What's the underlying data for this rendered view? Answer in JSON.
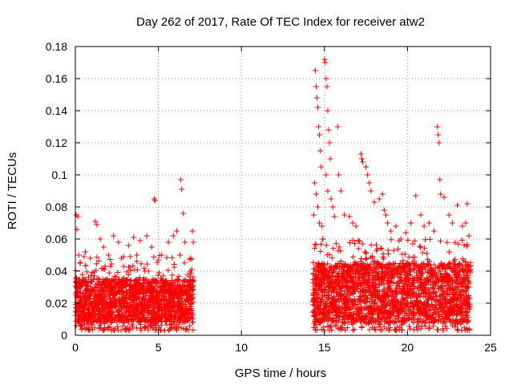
{
  "chart_data": {
    "type": "scatter",
    "title": "Day 262 of 2017, Rate Of TEC Index for receiver atw2",
    "xlabel": "GPS time / hours",
    "ylabel": "ROTI / TECUs",
    "xlim": [
      0,
      25
    ],
    "ylim": [
      0,
      0.18
    ],
    "x_ticks": [
      0,
      5,
      10,
      15,
      20,
      25
    ],
    "y_ticks": [
      0,
      0.02,
      0.04,
      0.06,
      0.08,
      0.1,
      0.12,
      0.14,
      0.16,
      0.18
    ],
    "x_tick_labels": [
      "0",
      "5",
      "10",
      "15",
      "20",
      "25"
    ],
    "y_tick_labels": [
      "0",
      "0.02",
      "0.04",
      "0.06",
      "0.08",
      "0.1",
      "0.12",
      "0.14",
      "0.16",
      "0.18"
    ],
    "grid": true,
    "marker": "plus",
    "color": "#ff0000",
    "series": [
      {
        "points": [
          [
            0.05,
            0.075
          ],
          [
            0.1,
            0.066
          ],
          [
            0.15,
            0.074
          ],
          [
            0.2,
            0.05
          ],
          [
            0.3,
            0.045
          ],
          [
            0.6,
            0.052
          ],
          [
            0.9,
            0.048
          ],
          [
            1.2,
            0.071
          ],
          [
            1.3,
            0.069
          ],
          [
            1.5,
            0.06
          ],
          [
            1.7,
            0.055
          ],
          [
            2.0,
            0.05
          ],
          [
            2.3,
            0.062
          ],
          [
            2.6,
            0.058
          ],
          [
            2.9,
            0.049
          ],
          [
            3.2,
            0.056
          ],
          [
            3.5,
            0.061
          ],
          [
            3.7,
            0.05
          ],
          [
            3.9,
            0.059
          ],
          [
            4.3,
            0.062
          ],
          [
            4.6,
            0.055
          ],
          [
            4.75,
            0.085
          ],
          [
            4.8,
            0.084
          ],
          [
            5.2,
            0.05
          ],
          [
            5.6,
            0.058
          ],
          [
            5.9,
            0.062
          ],
          [
            6.1,
            0.065
          ],
          [
            6.3,
            0.05
          ],
          [
            6.35,
            0.097
          ],
          [
            6.4,
            0.091
          ],
          [
            6.5,
            0.076
          ],
          [
            6.6,
            0.058
          ],
          [
            6.9,
            0.048
          ],
          [
            7.05,
            0.065
          ],
          [
            7.1,
            0.058
          ],
          [
            14.45,
            0.165
          ],
          [
            14.5,
            0.155
          ],
          [
            14.55,
            0.148
          ],
          [
            14.6,
            0.142
          ],
          [
            14.65,
            0.13
          ],
          [
            14.7,
            0.125
          ],
          [
            14.75,
            0.115
          ],
          [
            14.8,
            0.105
          ],
          [
            14.4,
            0.095
          ],
          [
            14.5,
            0.088
          ],
          [
            14.6,
            0.08
          ],
          [
            14.35,
            0.075
          ],
          [
            14.7,
            0.07
          ],
          [
            14.85,
            0.068
          ],
          [
            14.9,
            0.06
          ],
          [
            15.0,
            0.172
          ],
          [
            15.05,
            0.17
          ],
          [
            15.1,
            0.16
          ],
          [
            15.15,
            0.155
          ],
          [
            15.2,
            0.14
          ],
          [
            15.25,
            0.128
          ],
          [
            15.3,
            0.12
          ],
          [
            15.35,
            0.11
          ],
          [
            15.1,
            0.1
          ],
          [
            15.2,
            0.09
          ],
          [
            15.4,
            0.085
          ],
          [
            15.5,
            0.08
          ],
          [
            15.6,
            0.074
          ],
          [
            15.8,
            0.13
          ],
          [
            15.85,
            0.1
          ],
          [
            16.0,
            0.09
          ],
          [
            16.2,
            0.075
          ],
          [
            16.5,
            0.074
          ],
          [
            16.7,
            0.07
          ],
          [
            16.9,
            0.068
          ],
          [
            17.2,
            0.113
          ],
          [
            17.25,
            0.11
          ],
          [
            17.3,
            0.108
          ],
          [
            17.5,
            0.105
          ],
          [
            17.6,
            0.1
          ],
          [
            17.7,
            0.095
          ],
          [
            17.8,
            0.09
          ],
          [
            18.0,
            0.083
          ],
          [
            18.3,
            0.085
          ],
          [
            18.5,
            0.088
          ],
          [
            18.6,
            0.078
          ],
          [
            18.7,
            0.075
          ],
          [
            18.8,
            0.07
          ],
          [
            19.0,
            0.065
          ],
          [
            19.3,
            0.068
          ],
          [
            19.6,
            0.06
          ],
          [
            19.9,
            0.064
          ],
          [
            20.2,
            0.07
          ],
          [
            20.5,
            0.087
          ],
          [
            20.8,
            0.075
          ],
          [
            21.0,
            0.068
          ],
          [
            21.3,
            0.07
          ],
          [
            21.6,
            0.065
          ],
          [
            21.8,
            0.13
          ],
          [
            21.85,
            0.125
          ],
          [
            21.9,
            0.12
          ],
          [
            21.95,
            0.097
          ],
          [
            22.0,
            0.088
          ],
          [
            22.2,
            0.086
          ],
          [
            22.5,
            0.075
          ],
          [
            22.7,
            0.07
          ],
          [
            23.0,
            0.081
          ],
          [
            23.3,
            0.068
          ],
          [
            23.5,
            0.07
          ],
          [
            23.6,
            0.082
          ],
          [
            23.7,
            0.062
          ]
        ]
      }
    ],
    "dense_regions": [
      {
        "x_range": [
          0,
          7.1
        ],
        "y_range": [
          0.003,
          0.05
        ],
        "y_core": [
          0.008,
          0.035
        ]
      },
      {
        "x_range": [
          14.3,
          23.8
        ],
        "y_range": [
          0.003,
          0.06
        ],
        "y_core": [
          0.008,
          0.045
        ]
      }
    ]
  }
}
